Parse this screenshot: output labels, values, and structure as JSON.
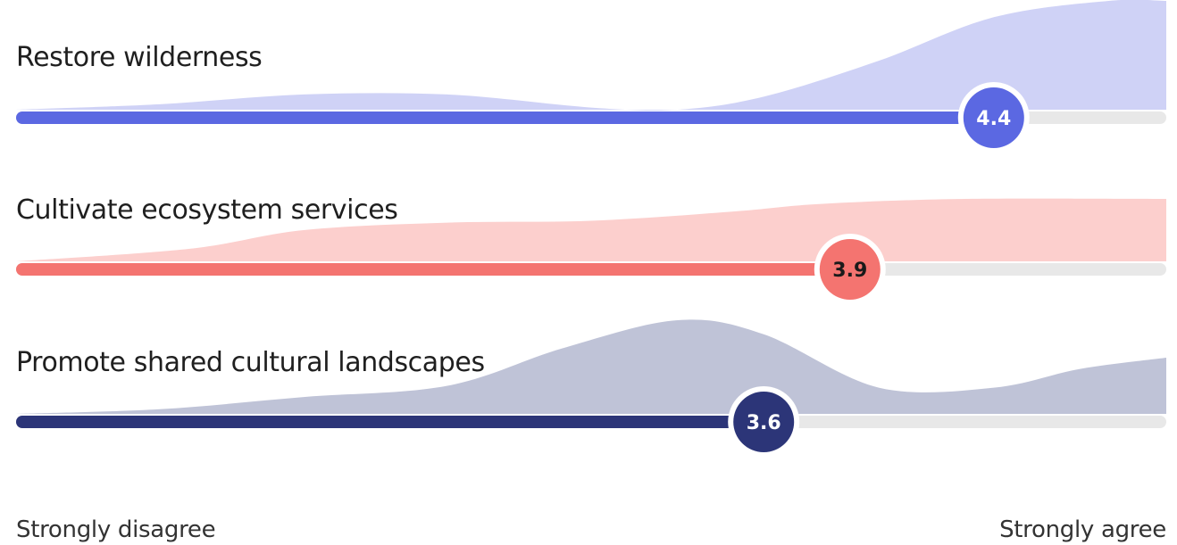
{
  "chart_data": {
    "type": "area",
    "scale": {
      "min": 1,
      "max": 5
    },
    "x_labels": {
      "left": "Strongly disagree",
      "right": "Strongly agree"
    },
    "items": [
      {
        "label": "Restore wilderness",
        "value": 4.4,
        "value_label": "4.4",
        "bar_color": "#5b68e2",
        "area_color": "#cfd2f6",
        "knob_text_color": "#ffffff",
        "distribution": [
          {
            "x": 1.0,
            "y": 0.0
          },
          {
            "x": 1.5,
            "y": 0.05
          },
          {
            "x": 2.0,
            "y": 0.14
          },
          {
            "x": 2.5,
            "y": 0.14
          },
          {
            "x": 3.0,
            "y": 0.02
          },
          {
            "x": 3.3,
            "y": 0.0
          },
          {
            "x": 3.6,
            "y": 0.12
          },
          {
            "x": 4.0,
            "y": 0.45
          },
          {
            "x": 4.4,
            "y": 0.85
          },
          {
            "x": 4.8,
            "y": 1.0
          },
          {
            "x": 5.0,
            "y": 1.0
          }
        ]
      },
      {
        "label": "Cultivate ecosystem services",
        "value": 3.9,
        "value_label": "3.9",
        "bar_color": "#f47470",
        "area_color": "#fccfcd",
        "knob_text_color": "#1a1a1a",
        "distribution": [
          {
            "x": 1.0,
            "y": 0.0
          },
          {
            "x": 1.6,
            "y": 0.2
          },
          {
            "x": 2.0,
            "y": 0.5
          },
          {
            "x": 2.5,
            "y": 0.62
          },
          {
            "x": 3.0,
            "y": 0.65
          },
          {
            "x": 3.5,
            "y": 0.8
          },
          {
            "x": 3.8,
            "y": 0.92
          },
          {
            "x": 4.3,
            "y": 1.0
          },
          {
            "x": 5.0,
            "y": 1.0
          }
        ]
      },
      {
        "label": "Promote shared cultural landscapes",
        "value": 3.6,
        "value_label": "3.6",
        "bar_color": "#2c3578",
        "area_color": "#bfc3d7",
        "knob_text_color": "#ffffff",
        "distribution": [
          {
            "x": 1.0,
            "y": 0.0
          },
          {
            "x": 1.5,
            "y": 0.05
          },
          {
            "x": 2.0,
            "y": 0.18
          },
          {
            "x": 2.5,
            "y": 0.3
          },
          {
            "x": 2.9,
            "y": 0.7
          },
          {
            "x": 3.3,
            "y": 1.0
          },
          {
            "x": 3.6,
            "y": 0.85
          },
          {
            "x": 4.0,
            "y": 0.28
          },
          {
            "x": 4.4,
            "y": 0.28
          },
          {
            "x": 4.7,
            "y": 0.48
          },
          {
            "x": 5.0,
            "y": 0.6
          }
        ]
      }
    ]
  }
}
